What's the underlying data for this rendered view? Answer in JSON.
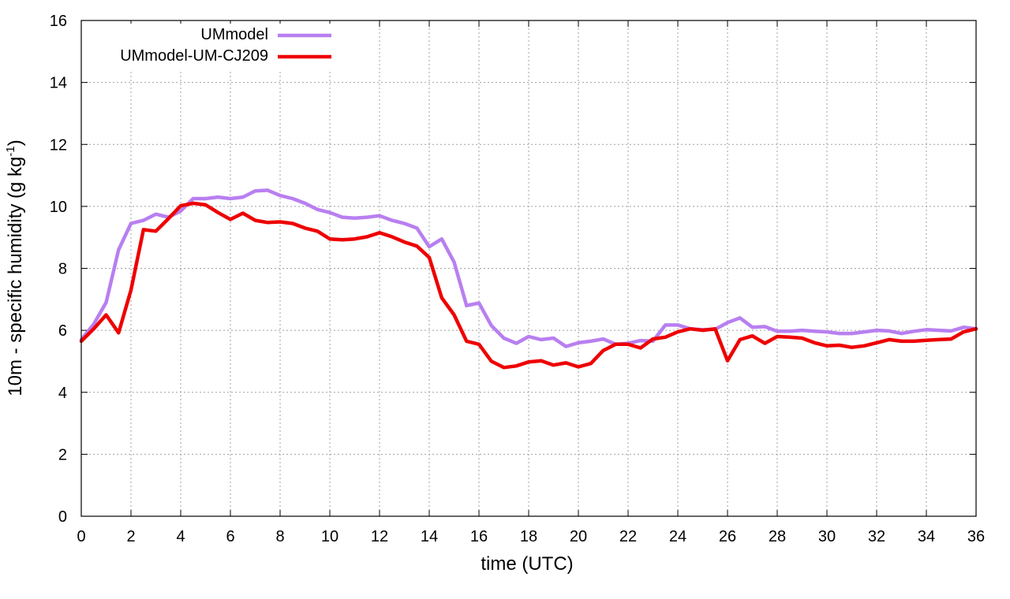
{
  "chart_data": {
    "type": "line",
    "title": "",
    "xlabel": "time (UTC)",
    "ylabel": {
      "main": "10m - specific humidity (g kg",
      "superscript": "-1",
      "end": ")"
    },
    "xlim": [
      0,
      36
    ],
    "ylim": [
      0,
      16
    ],
    "xticks": [
      0,
      2,
      4,
      6,
      8,
      10,
      12,
      14,
      16,
      18,
      20,
      22,
      24,
      26,
      28,
      30,
      32,
      34,
      36
    ],
    "yticks": [
      0,
      2,
      4,
      6,
      8,
      10,
      12,
      14,
      16
    ],
    "grid": true,
    "legend_position": "top-left",
    "series": [
      {
        "name": "UMmodel",
        "color": "#b87ff0",
        "x": [
          0,
          0.5,
          1,
          1.5,
          2,
          2.5,
          3,
          3.5,
          4,
          4.5,
          5,
          5.5,
          6,
          6.5,
          7,
          7.5,
          8,
          8.5,
          9,
          9.5,
          10,
          10.5,
          11,
          11.5,
          12,
          12.5,
          13,
          13.5,
          14,
          14.5,
          15,
          15.5,
          16,
          16.5,
          17,
          17.5,
          18,
          18.5,
          19,
          19.5,
          20,
          20.5,
          21,
          21.5,
          22,
          22.5,
          23,
          23.5,
          24,
          24.5,
          25,
          25.5,
          26,
          26.5,
          27,
          27.5,
          28,
          28.5,
          29,
          29.5,
          30,
          30.5,
          31,
          31.5,
          32,
          32.5,
          33,
          33.5,
          34,
          34.5,
          35,
          35.5,
          36
        ],
        "values": [
          5.7,
          6.2,
          6.9,
          8.6,
          9.45,
          9.55,
          9.75,
          9.65,
          9.85,
          10.25,
          10.25,
          10.3,
          10.25,
          10.3,
          10.5,
          10.52,
          10.35,
          10.25,
          10.1,
          9.9,
          9.8,
          9.65,
          9.62,
          9.65,
          9.7,
          9.55,
          9.45,
          9.3,
          8.7,
          8.95,
          8.2,
          6.8,
          6.88,
          6.15,
          5.75,
          5.58,
          5.8,
          5.7,
          5.75,
          5.48,
          5.6,
          5.65,
          5.72,
          5.55,
          5.58,
          5.67,
          5.65,
          6.17,
          6.17,
          6.05,
          6.02,
          6.03,
          6.25,
          6.4,
          6.1,
          6.12,
          5.97,
          5.97,
          6.0,
          5.97,
          5.95,
          5.9,
          5.9,
          5.95,
          6.0,
          5.98,
          5.9,
          5.97,
          6.02,
          6.0,
          5.98,
          6.1,
          6.05
        ]
      },
      {
        "name": "UMmodel-UM-CJ209",
        "color": "#ee0000",
        "x": [
          0,
          0.5,
          1,
          1.5,
          2,
          2.5,
          3,
          3.5,
          4,
          4.5,
          5,
          5.5,
          6,
          6.5,
          7,
          7.5,
          8,
          8.5,
          9,
          9.5,
          10,
          10.5,
          11,
          11.5,
          12,
          12.5,
          13,
          13.5,
          14,
          14.5,
          15,
          15.5,
          16,
          16.5,
          17,
          17.5,
          18,
          18.5,
          19,
          19.5,
          20,
          20.5,
          21,
          21.5,
          22,
          22.5,
          23,
          23.5,
          24,
          24.5,
          25,
          25.5,
          26,
          26.5,
          27,
          27.5,
          28,
          28.5,
          29,
          29.5,
          30,
          30.5,
          31,
          31.5,
          32,
          32.5,
          33,
          33.5,
          34,
          34.5,
          35,
          35.5,
          36
        ],
        "values": [
          5.65,
          6.05,
          6.5,
          5.92,
          7.3,
          9.25,
          9.2,
          9.6,
          10.02,
          10.1,
          10.05,
          9.8,
          9.58,
          9.78,
          9.55,
          9.48,
          9.5,
          9.45,
          9.3,
          9.2,
          8.95,
          8.92,
          8.95,
          9.02,
          9.15,
          9.02,
          8.85,
          8.72,
          8.35,
          7.05,
          6.5,
          5.65,
          5.55,
          5.0,
          4.8,
          4.85,
          4.98,
          5.02,
          4.88,
          4.95,
          4.82,
          4.93,
          5.35,
          5.55,
          5.55,
          5.43,
          5.72,
          5.78,
          5.95,
          6.05,
          6.0,
          6.05,
          5.02,
          5.7,
          5.82,
          5.58,
          5.8,
          5.78,
          5.75,
          5.6,
          5.5,
          5.52,
          5.45,
          5.5,
          5.6,
          5.7,
          5.65,
          5.65,
          5.68,
          5.7,
          5.72,
          5.95,
          6.05
        ]
      }
    ]
  }
}
